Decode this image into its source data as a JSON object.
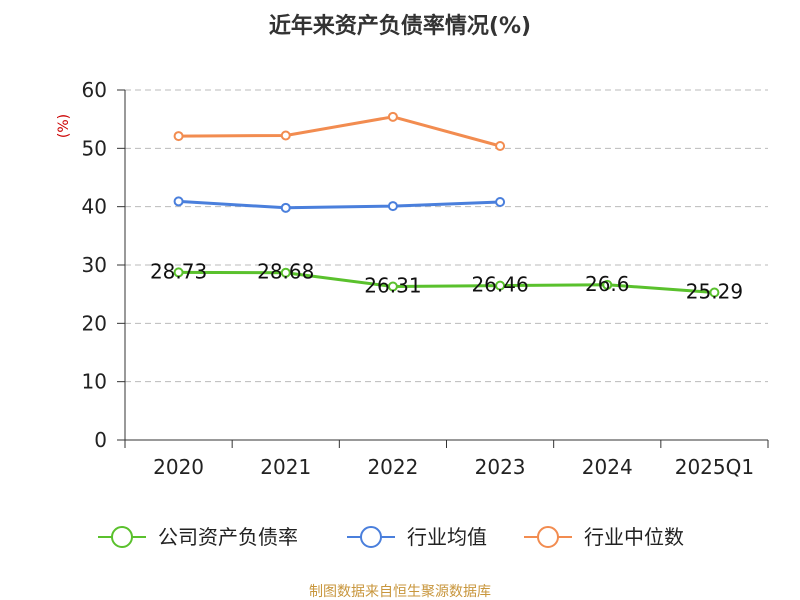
{
  "chart_data": {
    "type": "line",
    "title": "近年来资产负债率情况(%)",
    "ylabel": "(%)",
    "xlabel": "",
    "categories": [
      "2020",
      "2021",
      "2022",
      "2023",
      "2024",
      "2025Q1"
    ],
    "ylim": [
      0,
      60
    ],
    "yticks": [
      0,
      10,
      20,
      30,
      40,
      50,
      60
    ],
    "grid": true,
    "legend_position": "bottom",
    "series": [
      {
        "name": "公司资产负债率",
        "color": "#5ac12d",
        "values": [
          28.73,
          28.68,
          26.31,
          26.46,
          26.6,
          25.29
        ],
        "labels": [
          "28.73",
          "28.68",
          "26.31",
          "26.46",
          "26.6",
          "25.29"
        ]
      },
      {
        "name": "行业均值",
        "color": "#4a7fdc",
        "values": [
          40.9,
          39.8,
          40.1,
          40.8,
          null,
          null
        ]
      },
      {
        "name": "行业中位数",
        "color": "#f28c50",
        "values": [
          52.1,
          52.2,
          55.4,
          50.4,
          null,
          null
        ]
      }
    ]
  },
  "source_text": "制图数据来自恒生聚源数据库"
}
